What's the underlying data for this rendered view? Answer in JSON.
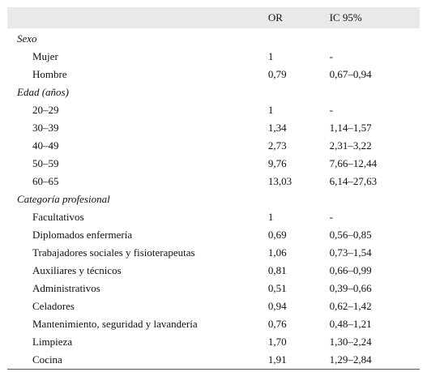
{
  "header": {
    "col1": "",
    "col2": "OR",
    "col3": "IC 95%"
  },
  "groups": [
    {
      "label": "Sexo",
      "rows": [
        {
          "name": "Mujer",
          "or": "1",
          "ic": "-"
        },
        {
          "name": "Hombre",
          "or": "0,79",
          "ic": "0,67–0,94"
        }
      ]
    },
    {
      "label": "Edad (años)",
      "rows": [
        {
          "name": "20–29",
          "or": "1",
          "ic": "-"
        },
        {
          "name": "30–39",
          "or": "1,34",
          "ic": "1,14–1,57"
        },
        {
          "name": "40–49",
          "or": "2,73",
          "ic": "2,31–3,22"
        },
        {
          "name": "50–59",
          "or": "9,76",
          "ic": "7,66–12,44"
        },
        {
          "name": "60–65",
          "or": "13,03",
          "ic": "6,14–27,63"
        }
      ]
    },
    {
      "label": "Categoría profesional",
      "rows": [
        {
          "name": "Facultativos",
          "or": "1",
          "ic": "-"
        },
        {
          "name": "Diplomados enfermería",
          "or": "0,69",
          "ic": "0,56–0,85"
        },
        {
          "name": "Trabajadores sociales y fisioterapeutas",
          "or": "1,06",
          "ic": "0,73–1,54"
        },
        {
          "name": "Auxiliares y técnicos",
          "or": "0,81",
          "ic": "0,66–0,99"
        },
        {
          "name": "Administrativos",
          "or": "0,51",
          "ic": "0,39–0,66"
        },
        {
          "name": "Celadores",
          "or": "0,94",
          "ic": "0,62–1,42"
        },
        {
          "name": "Mantenimiento, seguridad y lavandería",
          "or": "0,76",
          "ic": "0,48–1,21"
        },
        {
          "name": "Limpieza",
          "or": "1,70",
          "ic": "1,30–2,24"
        },
        {
          "name": "Cocina",
          "or": "1,91",
          "ic": "1,29–2,84"
        }
      ]
    }
  ]
}
